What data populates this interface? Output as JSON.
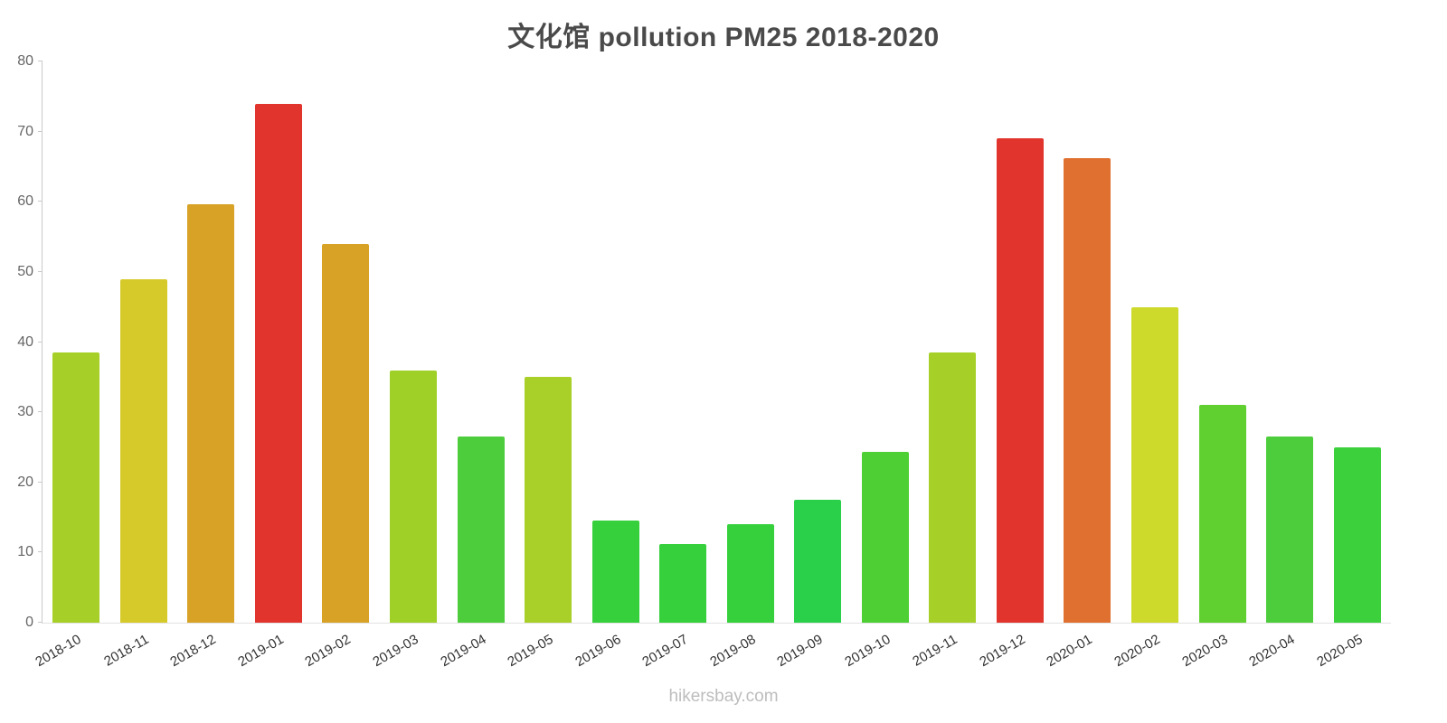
{
  "header": {
    "title": "文化馆 pollution PM25 2018-2020"
  },
  "footer": {
    "watermark": "hikersbay.com"
  },
  "chart_data": {
    "type": "bar",
    "title": "文化馆 pollution PM25 2018-2020",
    "xlabel": "",
    "ylabel": "",
    "ylim": [
      0,
      80
    ],
    "yticks": [
      0,
      10,
      20,
      30,
      40,
      50,
      60,
      70,
      80
    ],
    "grid": false,
    "legend": "none",
    "categories": [
      "2018-10",
      "2018-11",
      "2018-12",
      "2019-01",
      "2019-02",
      "2019-03",
      "2019-04",
      "2019-05",
      "2019-06",
      "2019-07",
      "2019-08",
      "2019-09",
      "2019-10",
      "2019-11",
      "2019-12",
      "2020-01",
      "2020-02",
      "2020-03",
      "2020-04",
      "2020-05"
    ],
    "values": [
      38.5,
      49,
      59.7,
      74,
      54,
      36,
      26.6,
      35,
      14.5,
      11.2,
      14,
      17.5,
      24.3,
      38.5,
      69,
      66.2,
      45,
      31,
      26.5,
      25
    ],
    "colors": [
      "#a6d028",
      "#d6ca2b",
      "#d7a226",
      "#e1342c",
      "#d7a226",
      "#9ed028",
      "#4ecd3c",
      "#a8d028",
      "#35d03c",
      "#35d03c",
      "#35d03c",
      "#2bd04a",
      "#4ed034",
      "#a6d028",
      "#e1342c",
      "#df7030",
      "#cdd92b",
      "#5fd02f",
      "#4ecd3c",
      "#3cd03c"
    ],
    "axis_color": "#c9c9c9",
    "ytick_label_color": "#666666",
    "xtick_label_color": "#333333"
  }
}
